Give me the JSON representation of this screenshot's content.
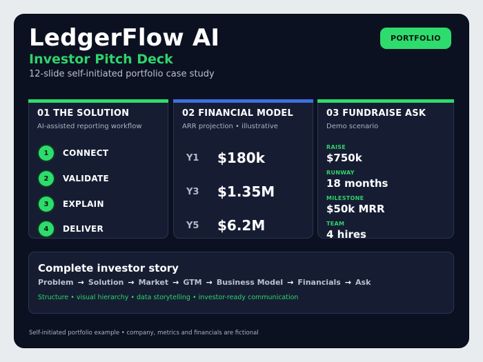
{
  "header": {
    "title": "LedgerFlow AI",
    "subtitle": "Investor Pitch Deck",
    "tagline": "12-slide self-initiated portfolio case study",
    "badge": "PORTFOLIO"
  },
  "colors": {
    "accent_green": "#2ddc6c",
    "accent_blue": "#3f6fe0",
    "panel_bg": "#161d33",
    "card_bg": "#0c1122"
  },
  "solution": {
    "title": "01  THE SOLUTION",
    "subtitle": "AI-assisted reporting workflow",
    "steps": [
      {
        "num": "1",
        "label": "CONNECT"
      },
      {
        "num": "2",
        "label": "VALIDATE"
      },
      {
        "num": "3",
        "label": "EXPLAIN"
      },
      {
        "num": "4",
        "label": "DELIVER"
      }
    ]
  },
  "financial": {
    "title": "02  FINANCIAL MODEL",
    "subtitle": "ARR projection • illustrative",
    "rows": [
      {
        "year": "Y1",
        "value": "$180k"
      },
      {
        "year": "Y3",
        "value": "$1.35M"
      },
      {
        "year": "Y5",
        "value": "$6.2M"
      }
    ]
  },
  "fundraise": {
    "title": "03  FUNDRAISE ASK",
    "subtitle": "Demo scenario",
    "items": [
      {
        "key": "RAISE",
        "value": "$750k"
      },
      {
        "key": "RUNWAY",
        "value": "18 months"
      },
      {
        "key": "MILESTONE",
        "value": "$50k MRR"
      },
      {
        "key": "TEAM",
        "value": "4 hires"
      }
    ]
  },
  "story": {
    "title": "Complete investor story",
    "flow": [
      "Problem",
      "Solution",
      "Market",
      "GTM",
      "Business Model",
      "Financials",
      "Ask"
    ],
    "arrow": "→",
    "skills": "Structure • visual hierarchy • data storytelling • investor-ready communication"
  },
  "footer": "Self-initiated portfolio example • company, metrics and financials are fictional"
}
